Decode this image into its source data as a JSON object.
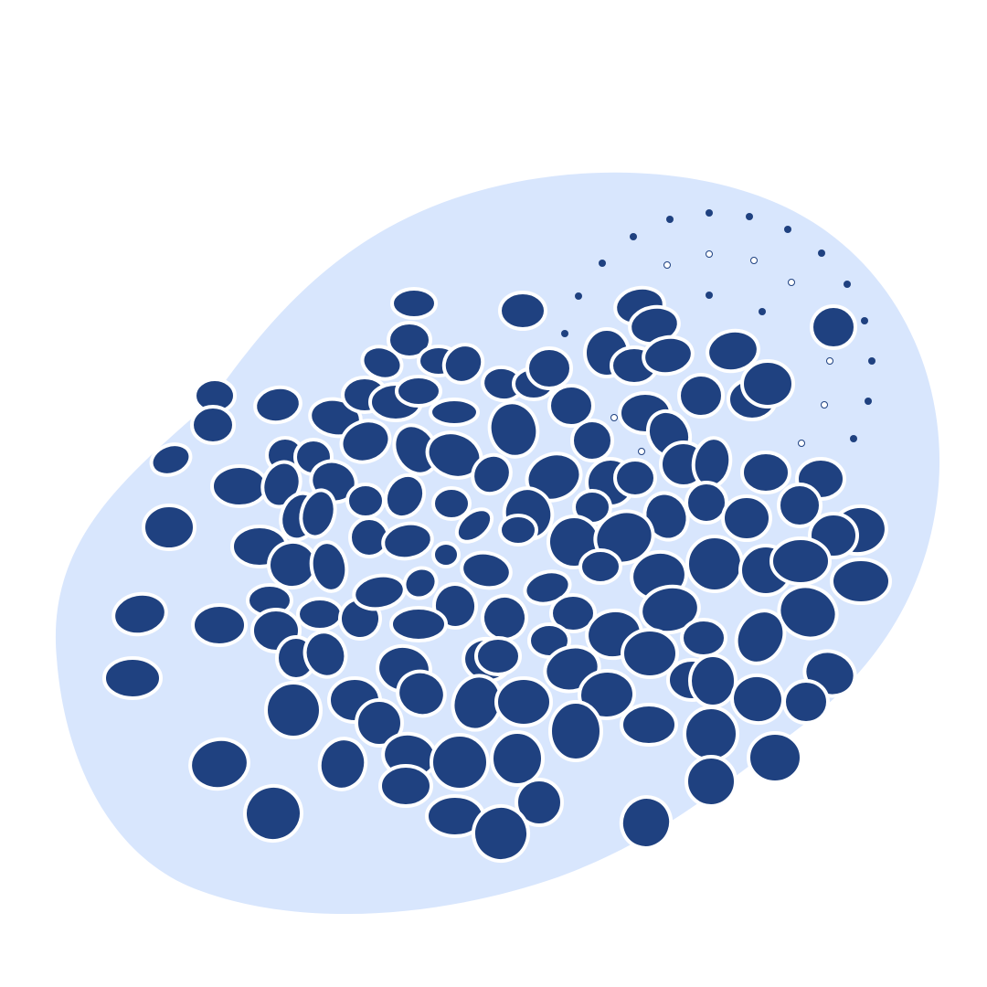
{
  "colors": {
    "background": "#ffffff",
    "blob": "#d8e6fd",
    "cell_fill": "#1f4180",
    "cell_stroke": "#ffffff",
    "dot": "#1f4180"
  },
  "icons": {
    "illustration": "cell-cluster-illustration"
  }
}
